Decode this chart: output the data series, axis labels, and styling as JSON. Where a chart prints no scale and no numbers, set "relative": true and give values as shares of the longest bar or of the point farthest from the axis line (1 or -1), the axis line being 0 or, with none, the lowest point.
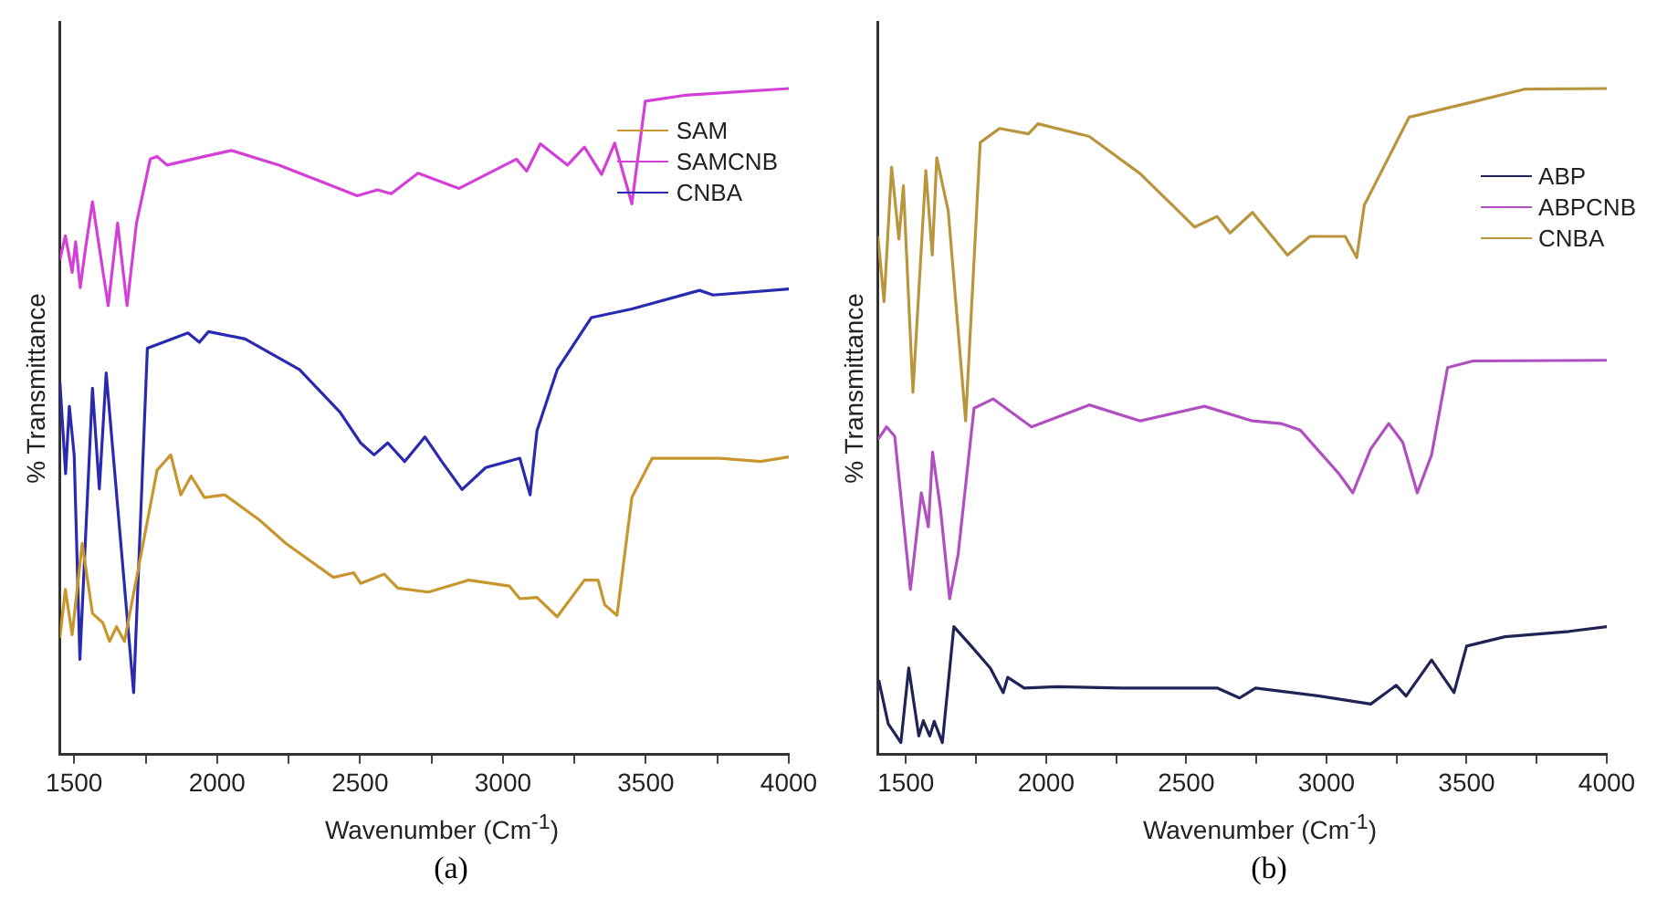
{
  "chart_data": [
    {
      "type": "line",
      "relative": true,
      "xlabel": "Wavenumber (Cm$^{-1}$)",
      "ylabel": "% Transmittance",
      "xlim": [
        1450,
        4000
      ],
      "xticks": [
        1500,
        {
          "value": 1750,
          "label": null
        },
        2000,
        {
          "value": 2250,
          "label": null
        },
        2500,
        {
          "value": 2750,
          "label": null
        },
        3000,
        {
          "value": 3250,
          "label": null
        },
        3500,
        {
          "value": 3750,
          "label": null
        },
        4000
      ],
      "legend": "top right",
      "grid": false,
      "marker": "none",
      "annotations": [
        "(a)"
      ],
      "series": [
        {
          "name": "SAM",
          "color": "#c8962e",
          "x": [
            1450,
            1469,
            1493,
            1528,
            1564,
            1600,
            1624,
            1648,
            1676,
            1743,
            1790,
            1838,
            1873,
            1909,
            1956,
            2027,
            2146,
            2241,
            2407,
            2478,
            2502,
            2585,
            2632,
            2739,
            2881,
            3023,
            3059,
            3119,
            3190,
            3285,
            3333,
            3356,
            3399,
            3451,
            3522,
            3759,
            3902,
            4000
          ],
          "values": [
            0.175,
            0.248,
            0.18,
            0.317,
            0.212,
            0.198,
            0.17,
            0.192,
            0.17,
            0.321,
            0.427,
            0.45,
            0.39,
            0.418,
            0.386,
            0.39,
            0.353,
            0.317,
            0.266,
            0.273,
            0.257,
            0.271,
            0.25,
            0.244,
            0.262,
            0.253,
            0.234,
            0.236,
            0.207,
            0.262,
            0.262,
            0.225,
            0.209,
            0.386,
            0.445,
            0.445,
            0.44,
            0.447
          ]
        },
        {
          "name": "SAMCNB",
          "color": "#d43fd8",
          "x": [
            1450,
            1469,
            1493,
            1505,
            1521,
            1540,
            1564,
            1588,
            1619,
            1652,
            1685,
            1718,
            1766,
            1790,
            1825,
            1956,
            2050,
            2217,
            2383,
            2490,
            2561,
            2609,
            2703,
            2846,
            3047,
            3083,
            3131,
            3226,
            3285,
            3345,
            3391,
            3451,
            3498,
            3640,
            4000
          ],
          "values": [
            0.743,
            0.779,
            0.724,
            0.77,
            0.701,
            0.761,
            0.83,
            0.761,
            0.674,
            0.798,
            0.674,
            0.798,
            0.894,
            0.898,
            0.885,
            0.898,
            0.907,
            0.885,
            0.857,
            0.839,
            0.848,
            0.842,
            0.873,
            0.85,
            0.894,
            0.876,
            0.917,
            0.885,
            0.912,
            0.871,
            0.918,
            0.827,
            0.981,
            0.99,
            1.0
          ]
        },
        {
          "name": "CNBA",
          "color": "#2a2ab0",
          "x": [
            1450,
            1470,
            1483,
            1500,
            1520,
            1564,
            1588,
            1612,
            1708,
            1756,
            1780,
            1898,
            1938,
            1970,
            2098,
            2288,
            2430,
            2502,
            2549,
            2597,
            2656,
            2727,
            2786,
            2857,
            2940,
            3059,
            3095,
            3119,
            3190,
            3309,
            3451,
            3688,
            3735,
            4000
          ],
          "values": [
            0.56,
            0.422,
            0.523,
            0.45,
            0.143,
            0.55,
            0.399,
            0.573,
            0.093,
            0.61,
            0.614,
            0.633,
            0.619,
            0.635,
            0.624,
            0.578,
            0.514,
            0.468,
            0.45,
            0.468,
            0.44,
            0.477,
            0.44,
            0.398,
            0.431,
            0.445,
            0.39,
            0.486,
            0.578,
            0.656,
            0.669,
            0.697,
            0.69,
            0.699
          ]
        }
      ]
    },
    {
      "type": "line",
      "relative": true,
      "xlabel": "Wavenumber (Cm$^{-1}$)",
      "ylabel": "% Transmittance",
      "xlim": [
        1400,
        4000
      ],
      "xticks": [
        1500,
        {
          "value": 1750,
          "label": null
        },
        2000,
        {
          "value": 2250,
          "label": null
        },
        2500,
        {
          "value": 2750,
          "label": null
        },
        3000,
        {
          "value": 3250,
          "label": null
        },
        3500,
        {
          "value": 3750,
          "label": null
        },
        4000
      ],
      "legend": "right",
      "grid": false,
      "marker": "none",
      "annotations": [
        "(b)"
      ],
      "series": [
        {
          "name": "ABP",
          "color": "#1f2356",
          "x": [
            1403,
            1437,
            1482,
            1510,
            1546,
            1562,
            1585,
            1601,
            1630,
            1671,
            1733,
            1801,
            1847,
            1863,
            1922,
            2040,
            2268,
            2610,
            2690,
            2747,
            2975,
            3158,
            3249,
            3284,
            3375,
            3455,
            3500,
            3637,
            3866,
            4000
          ],
          "values": [
            0.112,
            0.046,
            0.018,
            0.13,
            0.028,
            0.051,
            0.028,
            0.05,
            0.018,
            0.192,
            0.163,
            0.13,
            0.093,
            0.116,
            0.1,
            0.102,
            0.1,
            0.1,
            0.085,
            0.1,
            0.088,
            0.076,
            0.104,
            0.088,
            0.142,
            0.093,
            0.163,
            0.177,
            0.185,
            0.192
          ]
        },
        {
          "name": "ABPCNB",
          "color": "#b050c0",
          "x": [
            1400,
            1431,
            1460,
            1516,
            1555,
            1580,
            1595,
            1623,
            1656,
            1686,
            1743,
            1811,
            1948,
            2154,
            2336,
            2565,
            2736,
            2838,
            2907,
            3044,
            3094,
            3158,
            3222,
            3272,
            3324,
            3375,
            3432,
            3523,
            4000
          ],
          "values": [
            0.473,
            0.492,
            0.478,
            0.248,
            0.393,
            0.342,
            0.454,
            0.37,
            0.234,
            0.3,
            0.52,
            0.534,
            0.492,
            0.525,
            0.501,
            0.523,
            0.501,
            0.497,
            0.487,
            0.422,
            0.393,
            0.459,
            0.497,
            0.469,
            0.393,
            0.45,
            0.581,
            0.591,
            0.592
          ]
        },
        {
          "name": "CNBA",
          "color": "#b9963e",
          "x": [
            1400,
            1422,
            1449,
            1475,
            1491,
            1525,
            1571,
            1594,
            1610,
            1651,
            1713,
            1765,
            1834,
            1937,
            1971,
            2154,
            2336,
            2450,
            2530,
            2610,
            2656,
            2736,
            2861,
            2941,
            3067,
            3108,
            3135,
            3295,
            3523,
            3706,
            4000
          ],
          "values": [
            0.778,
            0.68,
            0.882,
            0.774,
            0.854,
            0.544,
            0.877,
            0.75,
            0.896,
            0.816,
            0.501,
            0.919,
            0.94,
            0.932,
            0.947,
            0.928,
            0.872,
            0.825,
            0.792,
            0.808,
            0.783,
            0.814,
            0.75,
            0.778,
            0.778,
            0.746,
            0.825,
            0.957,
            0.98,
            0.999,
            1.0
          ]
        }
      ]
    }
  ]
}
